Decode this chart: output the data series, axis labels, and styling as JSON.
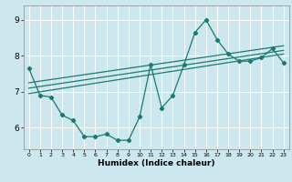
{
  "xlabel": "Humidex (Indice chaleur)",
  "bg_color": "#cce8ee",
  "line_color": "#1a7a6e",
  "grid_color": "#ffffff",
  "xlim": [
    -0.5,
    23.5
  ],
  "ylim": [
    5.4,
    9.4
  ],
  "yticks": [
    6,
    7,
    8,
    9
  ],
  "xticks": [
    0,
    1,
    2,
    3,
    4,
    5,
    6,
    7,
    8,
    9,
    10,
    11,
    12,
    13,
    14,
    15,
    16,
    17,
    18,
    19,
    20,
    21,
    22,
    23
  ],
  "main_curve_x": [
    0,
    1,
    2,
    3,
    4,
    5,
    6,
    7,
    8,
    9,
    10,
    11,
    12,
    13,
    14,
    15,
    16,
    17,
    18,
    19,
    20,
    21,
    22,
    23
  ],
  "main_curve_y": [
    7.65,
    6.9,
    6.85,
    6.35,
    6.2,
    5.75,
    5.75,
    5.82,
    5.65,
    5.65,
    6.3,
    7.75,
    6.55,
    6.9,
    7.75,
    8.65,
    9.0,
    8.45,
    8.05,
    7.85,
    7.85,
    7.95,
    8.2,
    7.8
  ],
  "lines": [
    {
      "x": [
        0,
        23
      ],
      "y": [
        6.95,
        8.05
      ]
    },
    {
      "x": [
        0,
        23
      ],
      "y": [
        7.1,
        8.15
      ]
    },
    {
      "x": [
        0,
        23
      ],
      "y": [
        7.25,
        8.28
      ]
    }
  ]
}
